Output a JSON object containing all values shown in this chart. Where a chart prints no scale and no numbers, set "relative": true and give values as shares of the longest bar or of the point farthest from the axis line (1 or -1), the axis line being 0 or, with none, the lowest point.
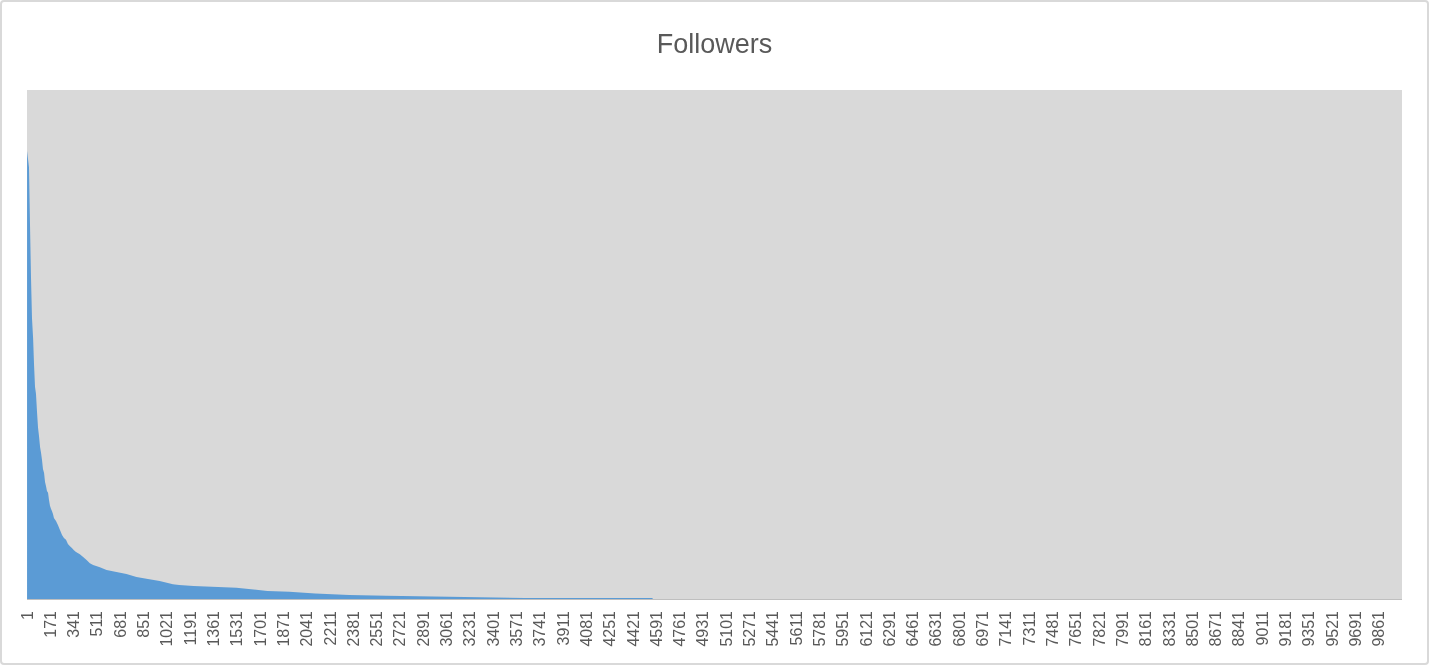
{
  "chart_data": {
    "type": "area",
    "title": "Followers",
    "relative": true,
    "tick_labels": "x",
    "color": "#5b9bd5",
    "x": [
      1,
      15,
      23,
      30,
      37,
      45,
      52,
      59,
      66,
      74,
      81,
      88,
      96,
      103,
      110,
      117,
      125,
      132,
      139,
      146,
      154,
      161,
      168,
      176,
      183,
      190,
      197,
      212,
      226,
      241,
      256,
      270,
      285,
      299,
      314,
      328,
      343,
      358,
      386,
      410,
      435,
      459,
      483,
      532,
      581,
      653,
      726,
      799,
      872,
      968,
      1065,
      1110,
      1215,
      1528,
      1754,
      1914,
      2103,
      2350,
      2619,
      3078,
      3630,
      4564
    ],
    "values": [
      1,
      0.964,
      0.826,
      0.714,
      0.626,
      0.582,
      0.522,
      0.473,
      0.458,
      0.415,
      0.382,
      0.364,
      0.339,
      0.326,
      0.31,
      0.29,
      0.281,
      0.261,
      0.252,
      0.241,
      0.237,
      0.221,
      0.208,
      0.201,
      0.196,
      0.19,
      0.181,
      0.174,
      0.165,
      0.154,
      0.143,
      0.136,
      0.132,
      0.123,
      0.118,
      0.114,
      0.109,
      0.105,
      0.1,
      0.094,
      0.087,
      0.08,
      0.076,
      0.071,
      0.065,
      0.06,
      0.056,
      0.049,
      0.045,
      0.04,
      0.033,
      0.031,
      0.029,
      0.025,
      0.018,
      0.016,
      0.012,
      0.009,
      0.007,
      0.005,
      0.002,
      0.002
    ],
    "xlim": [
      0.5,
      10030.5
    ],
    "xticks": [
      1,
      171,
      341,
      511,
      681,
      851,
      1021,
      1191,
      1361,
      1531,
      1701,
      1871,
      2041,
      2211,
      2381,
      2551,
      2721,
      2891,
      3061,
      3231,
      3401,
      3571,
      3741,
      3911,
      4081,
      4251,
      4421,
      4591,
      4761,
      4931,
      5101,
      5271,
      5441,
      5611,
      5781,
      5951,
      6121,
      6291,
      6461,
      6631,
      6801,
      6971,
      7141,
      7311,
      7481,
      7651,
      7821,
      7991,
      8161,
      8331,
      8501,
      8671,
      8841,
      9011,
      9181,
      9351,
      9521,
      9691,
      9861
    ]
  }
}
